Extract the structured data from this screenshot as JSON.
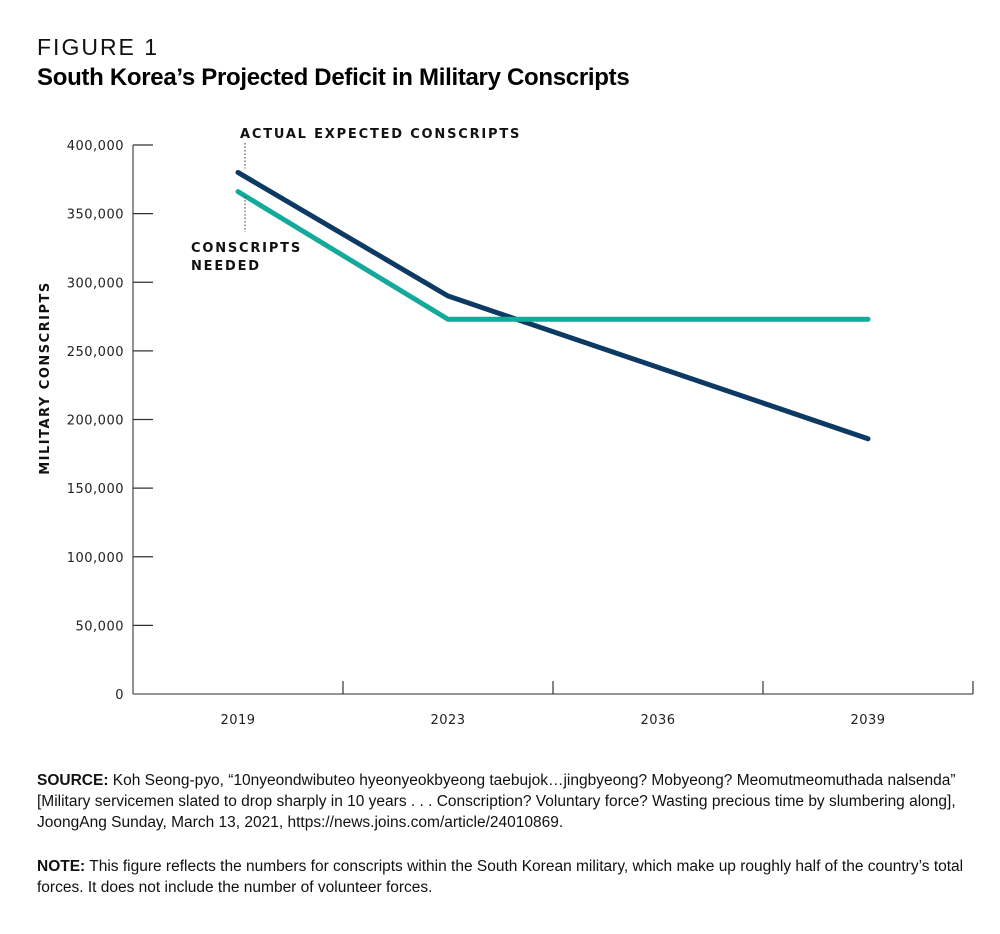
{
  "figure": {
    "label": "FIGURE 1",
    "title": "South Korea’s Projected Deficit in Military Conscripts"
  },
  "chart_data": {
    "type": "line",
    "title": "South Korea’s Projected Deficit in Military Conscripts",
    "xlabel": "",
    "ylabel": "MILITARY CONSCRIPTS",
    "categories": [
      "2019",
      "2023",
      "2036",
      "2039"
    ],
    "ylim": [
      0,
      400000
    ],
    "yticks": [
      0,
      50000,
      100000,
      150000,
      200000,
      250000,
      300000,
      350000,
      400000
    ],
    "ytick_labels": [
      "0",
      "50,000",
      "100,000",
      "150,000",
      "200,000",
      "250,000",
      "300,000",
      "350,000",
      "400,000"
    ],
    "grid": false,
    "series": [
      {
        "name": "ACTUAL EXPECTED CONSCRIPTS",
        "color": "#0d3a63",
        "points": [
          {
            "x": "2019",
            "y": 380000
          },
          {
            "x": "2023",
            "y": 290000
          },
          {
            "x": "2039",
            "y": 186000
          }
        ]
      },
      {
        "name": "CONSCRIPTS NEEDED",
        "color": "#14a99a",
        "points": [
          {
            "x": "2019",
            "y": 366000
          },
          {
            "x": "2023",
            "y": 273000
          },
          {
            "x": "2039",
            "y": 273000
          }
        ]
      }
    ],
    "annotations": [
      {
        "text": "ACTUAL EXPECTED CONSCRIPTS",
        "series": 0,
        "position": "above-start"
      },
      {
        "text": [
          "CONSCRIPTS",
          "NEEDED"
        ],
        "series": 1,
        "position": "below-start"
      }
    ]
  },
  "footer": {
    "source_label": "SOURCE:",
    "source_text": " Koh Seong-pyo, “10nyeondwibuteo hyeonyeokbyeong taebujok…jingbyeong? Mobyeong? Meomutmeomuthada nalsenda” [Military servicemen slated to drop sharply in 10 years . . . Conscription? Voluntary force? Wasting precious time by slumbering along], JoongAng Sunday, March 13, 2021, https://news.joins.com/article/24010869.",
    "note_label": "NOTE:",
    "note_text": " This figure reflects the numbers for conscripts within the South Korean military, which make up roughly half of the country’s total forces. It does not include the number of volunteer forces."
  }
}
